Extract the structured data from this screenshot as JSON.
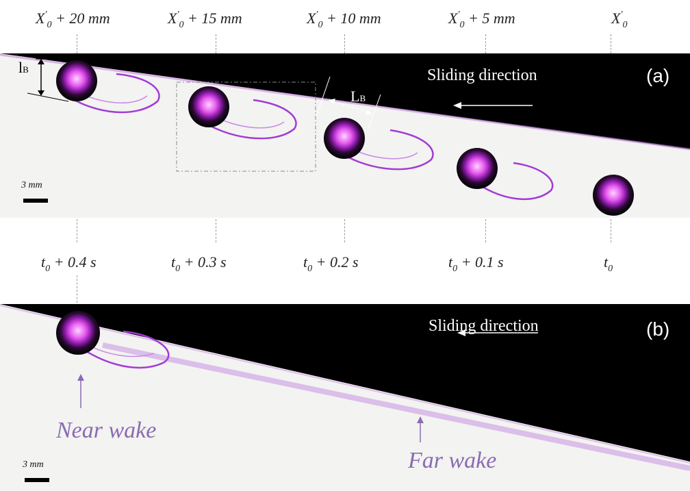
{
  "top_positions": [
    {
      "prefix": "X",
      "prime": "′",
      "sub": "0",
      "suffix": "+ 20 mm"
    },
    {
      "prefix": "X",
      "prime": "′",
      "sub": "0",
      "suffix": "+ 15 mm"
    },
    {
      "prefix": "X",
      "prime": "′",
      "sub": "0",
      "suffix": "+ 10 mm"
    },
    {
      "prefix": "X",
      "prime": "′",
      "sub": "0",
      "suffix": "+ 5 mm"
    },
    {
      "prefix": "X",
      "prime": "′",
      "sub": "0",
      "suffix": ""
    }
  ],
  "times": [
    {
      "prefix": "t",
      "sub": "0",
      "suffix": "+ 0.4 s"
    },
    {
      "prefix": "t",
      "sub": "0",
      "suffix": "+ 0.3 s"
    },
    {
      "prefix": "t",
      "sub": "0",
      "suffix": "+ 0.2 s"
    },
    {
      "prefix": "t",
      "sub": "0",
      "suffix": "+ 0.1 s"
    },
    {
      "prefix": "t",
      "sub": "0",
      "suffix": ""
    }
  ],
  "panel_a": {
    "letter": "(a)",
    "direction_text": "Sliding direction",
    "scale_text": "3 mm",
    "lB_label": {
      "main": "l",
      "sub": "B"
    },
    "LB_label": {
      "main": "L",
      "sub": "B"
    }
  },
  "panel_b": {
    "letter": "(b)",
    "direction_text": "Sliding direction",
    "scale_text": "3 mm",
    "near_wake": "Near wake",
    "far_wake": "Far wake"
  },
  "colors": {
    "background_dark": "#000000",
    "liquid": "#f3f3f1",
    "dye": "#a23bd6",
    "wake_label": "#8a6bb3",
    "bubble_core": "#e85cf0"
  }
}
